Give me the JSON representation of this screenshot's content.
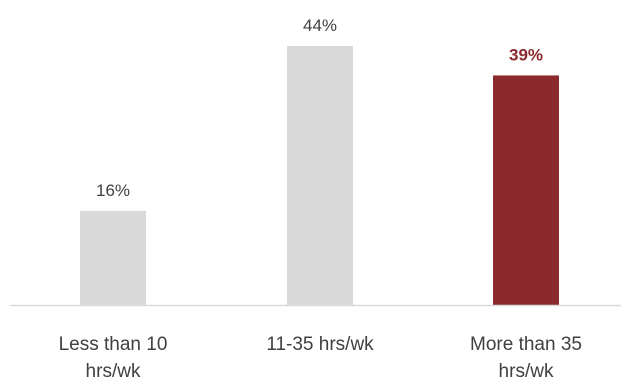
{
  "chart_data": {
    "type": "bar",
    "categories": [
      [
        "Less than 10",
        "hrs/wk"
      ],
      [
        "11-35 hrs/wk"
      ],
      [
        "More than 35",
        "hrs/wk"
      ]
    ],
    "values": [
      16,
      44,
      39
    ],
    "value_labels": [
      "16%",
      "44%",
      "39%"
    ],
    "highlight_index": 2,
    "colors": {
      "default_bar": "#d9d9d9",
      "highlight_bar": "#8b2a2c",
      "axis": "#d9d9d9"
    },
    "ylim": [
      0,
      44
    ],
    "grid": false,
    "legend": "none"
  }
}
